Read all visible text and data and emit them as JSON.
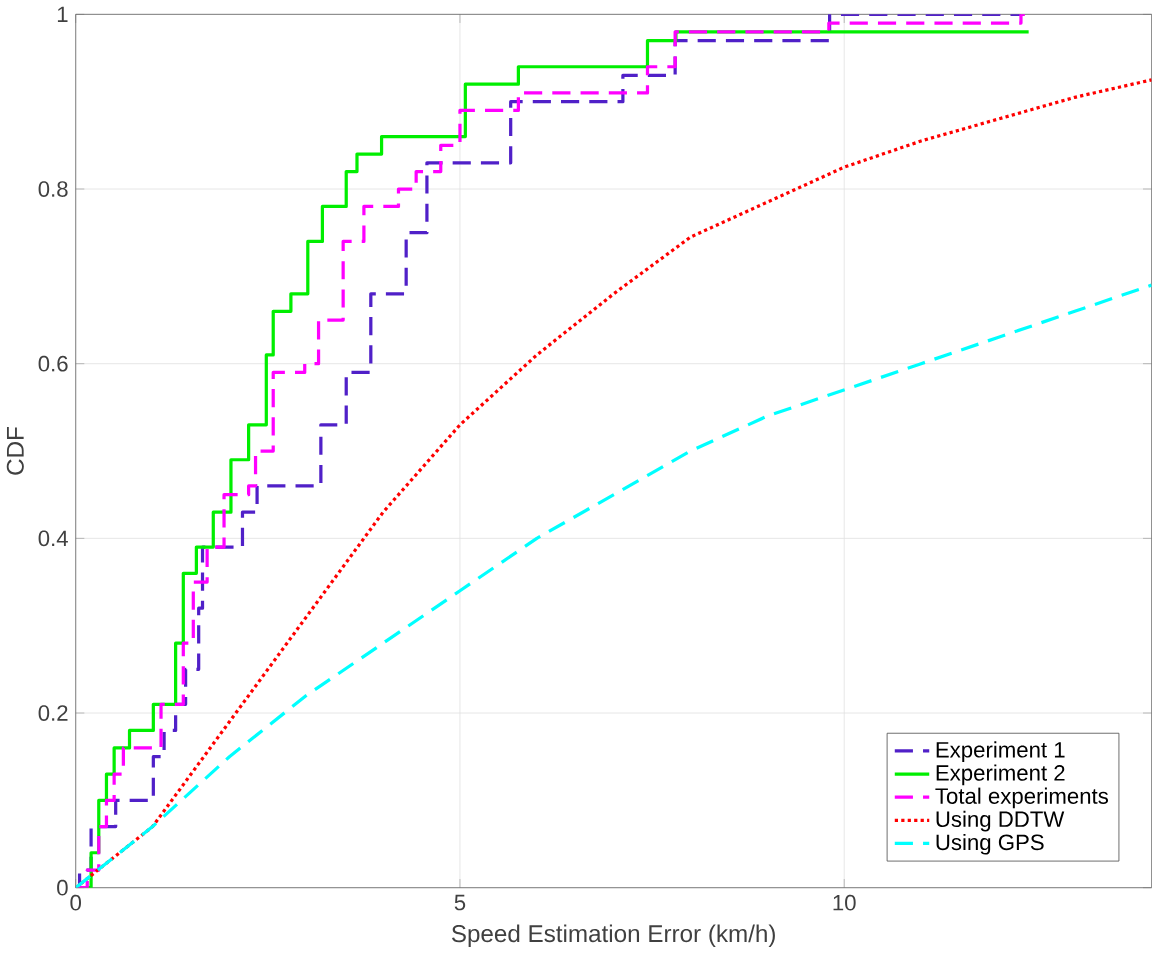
{
  "chart_data": {
    "type": "line",
    "xlabel": "Speed Estimation Error (km/h)",
    "ylabel": "CDF",
    "xlim": [
      0,
      14
    ],
    "ylim": [
      0,
      1
    ],
    "xticks": [
      0,
      5,
      10
    ],
    "yticks": [
      0,
      0.2,
      0.4,
      0.6,
      0.8,
      1
    ],
    "grid": true,
    "legend": "bottom right",
    "series": [
      {
        "name": "Experiment 1",
        "type": "step",
        "color": "#5020c8",
        "line_style": "dashed",
        "x": [
          0,
          0.05,
          0.2,
          0.52,
          1.01,
          1.15,
          1.3,
          1.43,
          1.6,
          1.65,
          2.17,
          2.36,
          3.19,
          3.3,
          3.52,
          3.84,
          4.3,
          4.57,
          5.66,
          7.12,
          7.8,
          9.81,
          12.3
        ],
        "values": [
          0,
          0.02,
          0.07,
          0.1,
          0.15,
          0.18,
          0.21,
          0.25,
          0.32,
          0.39,
          0.43,
          0.46,
          0.53,
          0.53,
          0.59,
          0.68,
          0.75,
          0.83,
          0.9,
          0.93,
          0.97,
          1,
          1
        ]
      },
      {
        "name": "Experiment 2",
        "type": "step",
        "color": "#00ee00",
        "line_style": "solid",
        "x": [
          0,
          0.2,
          0.3,
          0.4,
          0.5,
          0.7,
          1.01,
          1.3,
          1.4,
          1.57,
          1.79,
          2.02,
          2.25,
          2.48,
          2.57,
          2.8,
          3.02,
          3.21,
          3.52,
          3.66,
          3.98,
          4.94,
          5.07,
          5.76,
          7.44,
          7.81,
          12.4
        ],
        "values": [
          0,
          0.04,
          0.1,
          0.13,
          0.16,
          0.18,
          0.21,
          0.28,
          0.36,
          0.39,
          0.43,
          0.49,
          0.53,
          0.61,
          0.66,
          0.68,
          0.74,
          0.78,
          0.82,
          0.84,
          0.86,
          0.86,
          0.92,
          0.94,
          0.97,
          0.98,
          0.98
        ]
      },
      {
        "name": "Total experiments",
        "type": "step",
        "color": "#ff00ff",
        "line_style": "dashed",
        "x": [
          0,
          0.15,
          0.3,
          0.4,
          0.5,
          0.62,
          1.11,
          1.4,
          1.53,
          1.71,
          1.93,
          2.25,
          2.34,
          2.57,
          2.98,
          3.16,
          3.48,
          3.75,
          4.2,
          4.43,
          4.75,
          5.0,
          5.76,
          7.44,
          7.8,
          9.8,
          12.3,
          12.35
        ],
        "values": [
          0,
          0.02,
          0.07,
          0.1,
          0.13,
          0.16,
          0.21,
          0.28,
          0.35,
          0.39,
          0.45,
          0.46,
          0.5,
          0.59,
          0.6,
          0.65,
          0.74,
          0.78,
          0.8,
          0.82,
          0.85,
          0.89,
          0.91,
          0.94,
          0.98,
          0.99,
          1,
          1
        ]
      },
      {
        "name": "Using DDTW",
        "color": "#ff0000",
        "line_style": "dotted",
        "x": [
          0,
          1,
          2,
          3,
          4,
          5,
          6,
          7,
          8,
          9,
          10,
          11,
          12,
          13,
          14
        ],
        "values": [
          0,
          0.07,
          0.19,
          0.31,
          0.43,
          0.53,
          0.61,
          0.68,
          0.745,
          0.785,
          0.825,
          0.855,
          0.88,
          0.905,
          0.925
        ]
      },
      {
        "name": "Using GPS",
        "color": "#00ffff",
        "line_style": "dashed",
        "x": [
          0,
          1,
          2,
          3,
          4,
          5,
          6,
          7,
          8,
          9,
          10,
          11,
          12,
          13,
          14
        ],
        "values": [
          0,
          0.07,
          0.15,
          0.22,
          0.28,
          0.34,
          0.4,
          0.45,
          0.5,
          0.54,
          0.57,
          0.6,
          0.63,
          0.66,
          0.69
        ]
      }
    ]
  }
}
